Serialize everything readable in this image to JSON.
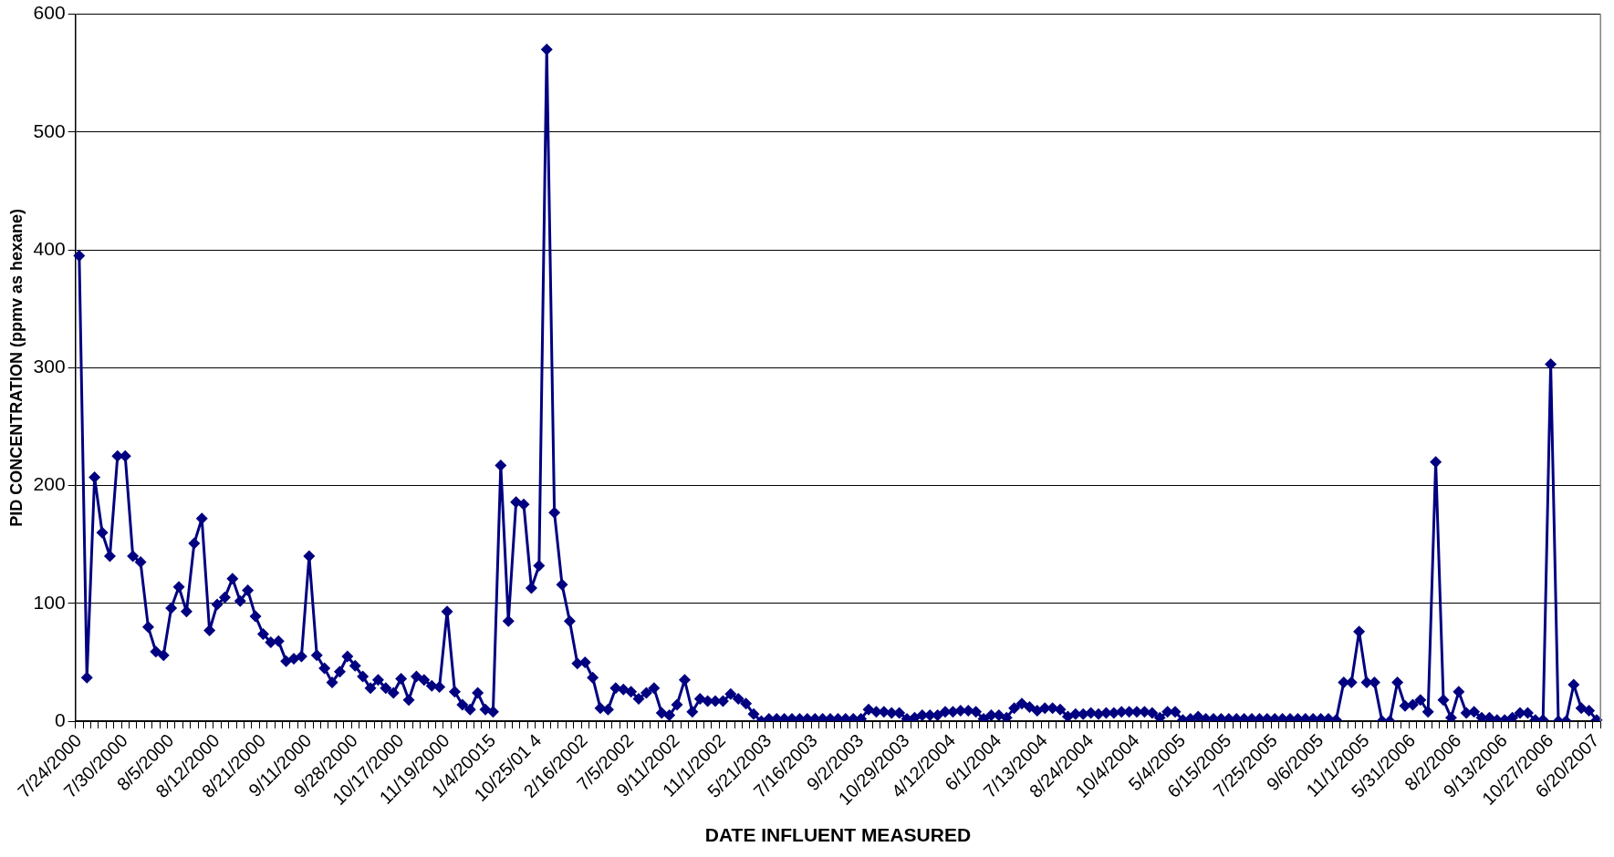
{
  "chart_data": {
    "type": "line",
    "xlabel": "DATE INFLUENT MEASURED",
    "ylabel": "PID CONCENTRATION (ppmv as hexane)",
    "categories": [
      "7/24/2000",
      null,
      null,
      null,
      null,
      null,
      "7/30/2000",
      null,
      null,
      null,
      null,
      null,
      "8/5/2000",
      null,
      null,
      null,
      null,
      null,
      "8/12/2000",
      null,
      null,
      null,
      null,
      null,
      "8/21/2000",
      null,
      null,
      null,
      null,
      null,
      "9/11/2000",
      null,
      null,
      null,
      null,
      null,
      "9/28/2000",
      null,
      null,
      null,
      null,
      null,
      "10/17/2000",
      null,
      null,
      null,
      null,
      null,
      "11/19/2000",
      null,
      null,
      null,
      null,
      null,
      "1/4/20015",
      null,
      null,
      null,
      null,
      null,
      "10/25/01 4",
      null,
      null,
      null,
      null,
      null,
      "2/16/2002",
      null,
      null,
      null,
      null,
      null,
      "7/5/2002",
      null,
      null,
      null,
      null,
      null,
      "9/11/2002",
      null,
      null,
      null,
      null,
      null,
      "11/1/2002",
      null,
      null,
      null,
      null,
      null,
      "5/21/2003",
      null,
      null,
      null,
      null,
      null,
      "7/16/2003",
      null,
      null,
      null,
      null,
      null,
      "9/2/2003",
      null,
      null,
      null,
      null,
      null,
      "10/29/2003",
      null,
      null,
      null,
      null,
      null,
      "4/12/2004",
      null,
      null,
      null,
      null,
      null,
      "6/1/2004",
      null,
      null,
      null,
      null,
      null,
      "7/13/2004",
      null,
      null,
      null,
      null,
      null,
      "8/24/2004",
      null,
      null,
      null,
      null,
      null,
      "10/4/2004",
      null,
      null,
      null,
      null,
      null,
      "5/4/2005",
      null,
      null,
      null,
      null,
      null,
      "6/15/2005",
      null,
      null,
      null,
      null,
      null,
      "7/25/2005",
      null,
      null,
      null,
      null,
      null,
      "9/6/2005",
      null,
      null,
      null,
      null,
      null,
      "11/1/2005",
      null,
      null,
      null,
      null,
      null,
      "5/31/2006",
      null,
      null,
      null,
      null,
      null,
      "8/2/2006",
      null,
      null,
      null,
      null,
      null,
      "9/13/2006",
      null,
      null,
      null,
      null,
      null,
      "10/27/2006",
      null,
      null,
      null,
      null,
      null,
      "6/20/2007"
    ],
    "series": [
      {
        "color": "#000080",
        "values": [
          395,
          37,
          207,
          160,
          140,
          225,
          225,
          140,
          135,
          80,
          59,
          56,
          96,
          114,
          93,
          151,
          172,
          77,
          99,
          105,
          121,
          102,
          111,
          89,
          74,
          67,
          68,
          51,
          53,
          55,
          140,
          56,
          45,
          33,
          42,
          55,
          47,
          38,
          28,
          35,
          28,
          24,
          36,
          18,
          38,
          35,
          30,
          29,
          93,
          25,
          14,
          10,
          24,
          10,
          8,
          217,
          85,
          186,
          184,
          113,
          132,
          570,
          177,
          116,
          85,
          49,
          50,
          37,
          11,
          10,
          28,
          27,
          25,
          19,
          24,
          28,
          7,
          5,
          14,
          35,
          8,
          19,
          17,
          17,
          17,
          23,
          19,
          15,
          6,
          0,
          2,
          2,
          2,
          2,
          2,
          2,
          2,
          2,
          2,
          2,
          2,
          2,
          2,
          10,
          8,
          8,
          7,
          7,
          2,
          3,
          5,
          5,
          5,
          8,
          8,
          9,
          9,
          8,
          2,
          5,
          5,
          3,
          11,
          15,
          12,
          9,
          11,
          11,
          10,
          4,
          6,
          6,
          7,
          6,
          7,
          7,
          8,
          8,
          8,
          8,
          7,
          3,
          8,
          8,
          1,
          2,
          4,
          2,
          2,
          2,
          2,
          2,
          2,
          2,
          2,
          2,
          2,
          2,
          2,
          2,
          2,
          2,
          2,
          2,
          1,
          33,
          33,
          76,
          33,
          33,
          0,
          0,
          33,
          13,
          14,
          18,
          8,
          220,
          18,
          3,
          25,
          7,
          8,
          3,
          3,
          1,
          1,
          3,
          7,
          7,
          1,
          1,
          303,
          0,
          0,
          31,
          11,
          9,
          1
        ]
      }
    ],
    "ylim": [
      0,
      600
    ],
    "yticks": [
      0,
      100,
      200,
      300,
      400,
      500,
      600
    ],
    "grid": "y",
    "legend": false,
    "marker": "diamond",
    "line_style": "solid"
  }
}
